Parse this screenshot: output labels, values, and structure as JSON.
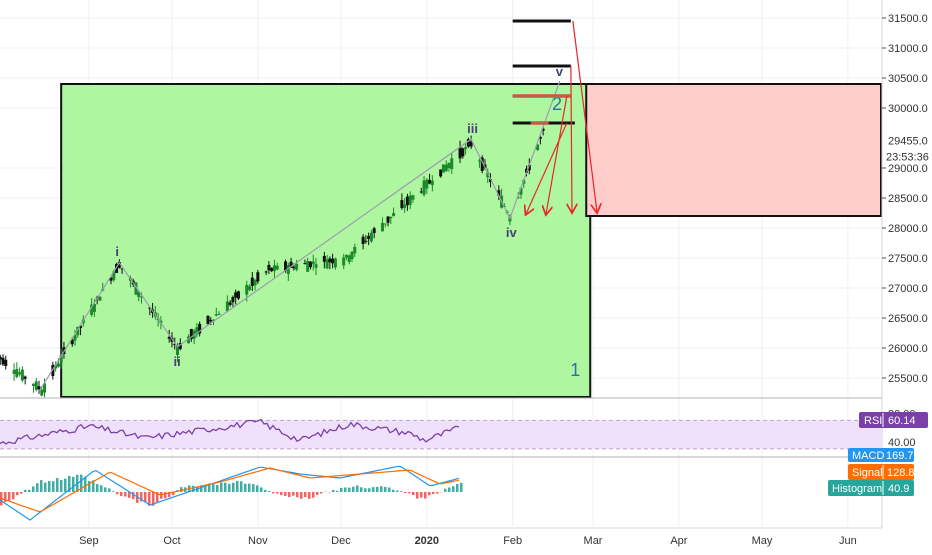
{
  "chart_data": {
    "type": "candlestick",
    "colors": {
      "up": "#1a8a2a",
      "down": "#111111",
      "green_box": "#aef7a0",
      "red_box": "#ffcccc",
      "wave_line": "#9c9cb0",
      "arrow": "#e8262b",
      "rsi_line": "#7a3fa8",
      "rsi_band": "#efe1fb",
      "macd_line": "#2196f3",
      "signal_line": "#ff6d00",
      "hist_up": "#26a69a",
      "hist_down": "#ef5350",
      "grid": "#eef0f3"
    },
    "price_axis": {
      "ticks": [
        "25500.0",
        "26000.0",
        "26500.0",
        "27000.0",
        "27500.0",
        "28000.0",
        "28500.0",
        "29000.0",
        "30000.0",
        "30500.0",
        "31000.0",
        "31500.0"
      ],
      "ylim": [
        25200,
        31700
      ]
    },
    "price_labels": {
      "last_price": "29455.0",
      "countdown": "23:53:36"
    },
    "x_labels": [
      "Sep",
      "Oct",
      "Nov",
      "Dec",
      "2020",
      "Feb",
      "Mar",
      "Apr",
      "May",
      "Jun"
    ],
    "waypoints": [
      {
        "date": "2019-08-15",
        "close": 25300
      },
      {
        "date": "2019-09-12",
        "close": 27400
      },
      {
        "date": "2019-10-03",
        "close": 26000
      },
      {
        "date": "2019-11-05",
        "close": 27300
      },
      {
        "date": "2019-12-03",
        "close": 27500
      },
      {
        "date": "2020-01-17",
        "close": 29400
      },
      {
        "date": "2020-01-31",
        "close": 28200
      },
      {
        "date": "2020-02-12",
        "close": 29600
      }
    ],
    "wave_labels": [
      {
        "label": "i",
        "date": "2019-09-12",
        "price": 27400
      },
      {
        "label": "ii",
        "date": "2019-10-03",
        "price": 26000
      },
      {
        "label": "iii",
        "date": "2020-01-17",
        "price": 29450
      },
      {
        "label": "iv",
        "date": "2020-01-31",
        "price": 28150
      },
      {
        "label": "v",
        "date": "2020-02-18",
        "price": 30400
      }
    ],
    "target_levels": [
      31450,
      30700,
      30200,
      29750
    ],
    "box_labels": {
      "green": "1",
      "red": "2"
    },
    "rsi": {
      "label": "RSI",
      "value": "60.14",
      "ticks": [
        "80.00",
        "40.00"
      ],
      "band": [
        30,
        70
      ],
      "ylim": [
        20,
        100
      ]
    },
    "macd": {
      "labels": {
        "macd": "MACD",
        "signal": "Signal",
        "histogram": "Histogram"
      },
      "values": {
        "macd": "169.7",
        "signal": "128.8",
        "histogram": "40.9"
      }
    }
  }
}
